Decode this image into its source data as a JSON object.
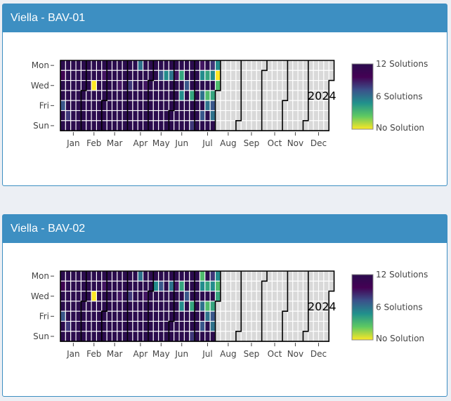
{
  "weekday_labels": [
    "Mon",
    "Wed",
    "Fri",
    "Sun"
  ],
  "month_labels": [
    "Jan",
    "Feb",
    "Mar",
    "Apr",
    "May",
    "Jun",
    "Jul",
    "Aug",
    "Sep",
    "Oct",
    "Nov",
    "Dec"
  ],
  "year_label": "2024",
  "legend": {
    "max_label": "12 Solutions",
    "mid_label": "6 Solutions",
    "min_label": "No Solution"
  },
  "colors": {
    "header": "#3d8fc2",
    "no_data": "#d9d9d9",
    "scale": [
      "#fde725",
      "#5ec962",
      "#21918c",
      "#3b528b",
      "#440154",
      "#2b0c4e"
    ]
  },
  "chart_data": [
    {
      "type": "heatmap",
      "title": "Viella - BAV-01",
      "year": 2024,
      "value_range": [
        0,
        12
      ],
      "data_through": "2024-07-31",
      "overrides": [
        {
          "date": "2024-01-02",
          "value": 10
        },
        {
          "date": "2024-01-05",
          "value": 7
        },
        {
          "date": "2024-01-13",
          "value": 8
        },
        {
          "date": "2024-02-14",
          "value": 0
        },
        {
          "date": "2024-02-27",
          "value": 9
        },
        {
          "date": "2024-03-20",
          "value": 9
        },
        {
          "date": "2024-04-03",
          "value": 8
        },
        {
          "date": "2024-04-15",
          "value": 6
        },
        {
          "date": "2024-04-24",
          "value": 9
        },
        {
          "date": "2024-05-14",
          "value": 7
        },
        {
          "date": "2024-05-21",
          "value": 5
        },
        {
          "date": "2024-05-28",
          "value": 6
        },
        {
          "date": "2024-06-04",
          "value": 9
        },
        {
          "date": "2024-06-11",
          "value": 4
        },
        {
          "date": "2024-06-13",
          "value": 5
        },
        {
          "date": "2024-06-19",
          "value": 7
        },
        {
          "date": "2024-06-27",
          "value": 4
        },
        {
          "date": "2024-06-30",
          "value": 8
        },
        {
          "date": "2024-07-08",
          "value": 9
        },
        {
          "date": "2024-07-09",
          "value": 5
        },
        {
          "date": "2024-07-11",
          "value": 6
        },
        {
          "date": "2024-07-13",
          "value": 7
        },
        {
          "date": "2024-07-16",
          "value": 4
        },
        {
          "date": "2024-07-18",
          "value": 3
        },
        {
          "date": "2024-07-19",
          "value": 6
        },
        {
          "date": "2024-07-22",
          "value": 8
        },
        {
          "date": "2024-07-23",
          "value": 5
        },
        {
          "date": "2024-07-25",
          "value": 4
        },
        {
          "date": "2024-07-26",
          "value": 7
        },
        {
          "date": "2024-07-27",
          "value": 6
        },
        {
          "date": "2024-07-29",
          "value": 5
        },
        {
          "date": "2024-07-30",
          "value": 0
        },
        {
          "date": "2024-07-31",
          "value": 3
        }
      ]
    },
    {
      "type": "heatmap",
      "title": "Viella - BAV-02",
      "year": 2024,
      "value_range": [
        0,
        12
      ],
      "data_through": "2024-07-31",
      "overrides": [
        {
          "date": "2024-01-02",
          "value": 10
        },
        {
          "date": "2024-01-05",
          "value": 7
        },
        {
          "date": "2024-01-13",
          "value": 8
        },
        {
          "date": "2024-02-14",
          "value": 0
        },
        {
          "date": "2024-02-27",
          "value": 9
        },
        {
          "date": "2024-03-20",
          "value": 9
        },
        {
          "date": "2024-04-03",
          "value": 8
        },
        {
          "date": "2024-04-15",
          "value": 6
        },
        {
          "date": "2024-04-24",
          "value": 9
        },
        {
          "date": "2024-05-07",
          "value": 5
        },
        {
          "date": "2024-05-14",
          "value": 7
        },
        {
          "date": "2024-05-28",
          "value": 6
        },
        {
          "date": "2024-06-04",
          "value": 9
        },
        {
          "date": "2024-06-11",
          "value": 4
        },
        {
          "date": "2024-06-13",
          "value": 5
        },
        {
          "date": "2024-06-19",
          "value": 7
        },
        {
          "date": "2024-06-27",
          "value": 4
        },
        {
          "date": "2024-06-30",
          "value": 8
        },
        {
          "date": "2024-07-08",
          "value": 3
        },
        {
          "date": "2024-07-09",
          "value": 5
        },
        {
          "date": "2024-07-11",
          "value": 6
        },
        {
          "date": "2024-07-13",
          "value": 7
        },
        {
          "date": "2024-07-16",
          "value": 4
        },
        {
          "date": "2024-07-18",
          "value": 3
        },
        {
          "date": "2024-07-19",
          "value": 6
        },
        {
          "date": "2024-07-22",
          "value": 8
        },
        {
          "date": "2024-07-23",
          "value": 5
        },
        {
          "date": "2024-07-25",
          "value": 4
        },
        {
          "date": "2024-07-26",
          "value": 7
        },
        {
          "date": "2024-07-27",
          "value": 6
        },
        {
          "date": "2024-07-29",
          "value": 5
        },
        {
          "date": "2024-07-30",
          "value": 3
        },
        {
          "date": "2024-07-31",
          "value": 4
        }
      ]
    }
  ]
}
